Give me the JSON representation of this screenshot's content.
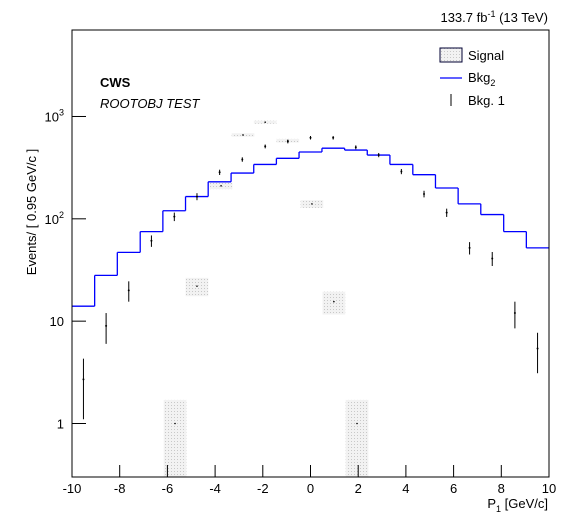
{
  "chart_data": {
    "type": "histogram",
    "lumi": {
      "text": "133.7 fb",
      "sup": "-1",
      "rest": " (13 TeV)"
    },
    "label": "CWS",
    "sublabel": "ROOTOBJ TEST",
    "xlabel": {
      "text": "P",
      "sub": "1",
      "rest": " [GeV/c]"
    },
    "ylabel": "Events/ [ 0.95 GeV/c ]",
    "xlim": [
      -10,
      10
    ],
    "xticks": [
      -10,
      -8,
      -6,
      -4,
      -2,
      0,
      2,
      4,
      6,
      8,
      10
    ],
    "ylim": [
      0.3,
      7000
    ],
    "log_y": true,
    "yticks": [
      1,
      10,
      {
        "value": 100,
        "label": "10",
        "exponent": "2"
      },
      {
        "value": 1000,
        "label": "10",
        "exponent": "3"
      }
    ],
    "bins": [
      -10,
      -9.05,
      -8.1,
      -7.14,
      -6.19,
      -5.24,
      -4.29,
      -3.33,
      -2.38,
      -1.43,
      -0.48,
      0.48,
      1.43,
      2.38,
      3.33,
      4.29,
      5.24,
      6.19,
      7.14,
      8.1,
      9.05,
      10
    ],
    "histogram": {
      "name": "Bkg",
      "name_sub": "2",
      "color": "#0000ff",
      "values": [
        14,
        28,
        47,
        75,
        120,
        165,
        230,
        280,
        340,
        390,
        450,
        490,
        470,
        420,
        340,
        270,
        200,
        140,
        110,
        75,
        52
      ]
    },
    "points": {
      "name": "Bkg. 1",
      "color": "#000000",
      "x": [
        -9.52,
        -8.57,
        -7.62,
        -6.67,
        -5.71,
        -4.76,
        -3.81,
        -2.86,
        -1.9,
        -0.95,
        0,
        0.95,
        1.9,
        2.86,
        3.81,
        4.76,
        5.71,
        6.67,
        7.62,
        8.57,
        9.52
      ],
      "values": [
        2.7,
        9,
        20,
        61,
        105,
        165,
        285,
        380,
        510,
        570,
        620,
        620,
        500,
        420,
        290,
        175,
        115,
        52,
        41,
        12,
        5.4
      ],
      "errors": [
        1.6,
        3,
        4.5,
        7.8,
        10,
        13,
        17,
        19,
        22,
        24,
        25,
        25,
        22,
        20,
        17,
        13,
        10.7,
        7.2,
        6.4,
        3.5,
        2.3
      ]
    },
    "signal": {
      "name": "Signal",
      "color": "#bbbbbb",
      "x": [
        -5.68,
        -4.76,
        -3.75,
        -2.83,
        -1.9,
        -0.95,
        0.06,
        0.98,
        1.95
      ],
      "values": [
        1.0,
        22,
        210,
        660,
        880,
        580,
        140,
        15.5,
        1.0
      ],
      "errors": [
        0.7,
        4.5,
        15,
        26,
        30,
        24,
        12,
        3.9,
        0.7
      ]
    },
    "legend": "top-right"
  }
}
